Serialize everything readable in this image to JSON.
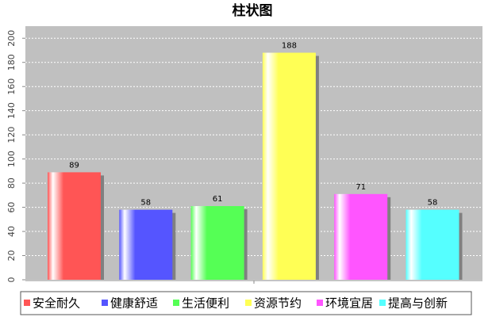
{
  "chart_data": {
    "type": "bar",
    "title": "柱状图",
    "categories": [
      "安全耐久",
      "健康舒适",
      "生活便利",
      "资源节约",
      "环境宜居",
      "提高与创新"
    ],
    "values": [
      89,
      58,
      61,
      188,
      71,
      58
    ],
    "colors": [
      "#ff5555",
      "#5555ff",
      "#55ff55",
      "#ffff55",
      "#ff55ff",
      "#55ffff"
    ],
    "ylim": [
      0,
      210
    ],
    "yticks": [
      0,
      20,
      40,
      60,
      80,
      100,
      120,
      140,
      160,
      180,
      200
    ],
    "grid": true,
    "legend": "bottom"
  }
}
